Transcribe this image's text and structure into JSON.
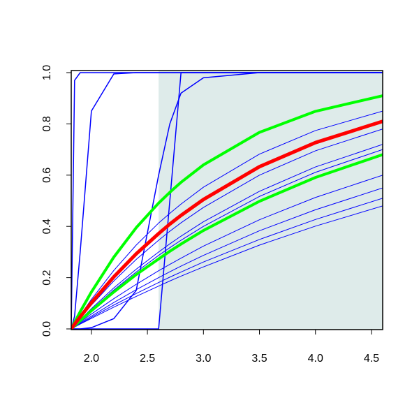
{
  "chart_data": {
    "type": "line",
    "xlim": [
      1.82,
      4.6
    ],
    "ylim": [
      0,
      1
    ],
    "xticks": [
      {
        "value": 2,
        "label": "2.0"
      },
      {
        "value": 2.5,
        "label": "2.5"
      },
      {
        "value": 3,
        "label": "3.0"
      },
      {
        "value": 3.5,
        "label": "3.5"
      },
      {
        "value": 4,
        "label": "4.0"
      },
      {
        "value": 4.5,
        "label": "4.5"
      }
    ],
    "yticks": [
      {
        "value": 0,
        "label": "0.0"
      },
      {
        "value": 0.2,
        "label": "0.2"
      },
      {
        "value": 0.4,
        "label": "0.4"
      },
      {
        "value": 0.6,
        "label": "0.6"
      },
      {
        "value": 0.8,
        "label": "0.8"
      },
      {
        "value": 1,
        "label": "1.0"
      }
    ],
    "shaded_xrange": [
      2.6,
      4.6
    ],
    "shade_color": "#deebea",
    "x": [
      1.82,
      1.85,
      1.9,
      2.0,
      2.2,
      2.4,
      2.6,
      2.7,
      2.8,
      3.0,
      3.5,
      4.0,
      4.6
    ],
    "series": [
      {
        "color": "#0000ff",
        "linewidth": 1.5,
        "values": [
          0,
          0.97,
          1,
          1,
          1,
          1,
          1,
          1,
          1,
          1,
          1,
          1,
          1
        ]
      },
      {
        "color": "#0000ff",
        "linewidth": 1.5,
        "values": [
          0,
          0.05,
          0.3,
          0.85,
          0.995,
          1,
          1,
          1,
          1,
          1,
          1,
          1,
          1
        ]
      },
      {
        "color": "#0000ff",
        "linewidth": 1.5,
        "values": [
          0,
          0,
          0,
          0.005,
          0.04,
          0.15,
          0.6,
          0.8,
          0.92,
          0.98,
          1,
          1,
          1
        ]
      },
      {
        "color": "#0000ff",
        "linewidth": 1.5,
        "values": [
          0,
          0,
          0,
          0,
          0,
          0,
          0,
          0.5,
          1,
          1,
          1,
          1,
          1
        ]
      },
      {
        "color": "#0000ff",
        "linewidth": 1,
        "values": [
          0,
          0.02,
          0.053,
          0.115,
          0.228,
          0.327,
          0.413,
          0.451,
          0.487,
          0.553,
          0.682,
          0.774,
          0.85
        ]
      },
      {
        "color": "#0000ff",
        "linewidth": 1,
        "values": [
          0,
          0.016,
          0.043,
          0.093,
          0.187,
          0.271,
          0.346,
          0.381,
          0.414,
          0.474,
          0.6,
          0.695,
          0.78
        ]
      },
      {
        "color": "#0000ff",
        "linewidth": 1,
        "values": [
          0,
          0.014,
          0.036,
          0.079,
          0.16,
          0.233,
          0.3,
          0.332,
          0.362,
          0.418,
          0.537,
          0.632,
          0.72
        ]
      },
      {
        "color": "#0000ff",
        "linewidth": 1,
        "values": [
          0,
          0.013,
          0.034,
          0.075,
          0.152,
          0.222,
          0.287,
          0.317,
          0.346,
          0.4,
          0.517,
          0.611,
          0.7
        ]
      },
      {
        "color": "#0000ff",
        "linewidth": 1,
        "values": [
          0,
          0.01,
          0.026,
          0.058,
          0.118,
          0.174,
          0.227,
          0.252,
          0.276,
          0.323,
          0.426,
          0.513,
          0.6
        ]
      },
      {
        "color": "#0000ff",
        "linewidth": 1,
        "values": [
          0,
          0.009,
          0.023,
          0.05,
          0.103,
          0.153,
          0.2,
          0.223,
          0.245,
          0.287,
          0.383,
          0.465,
          0.55
        ]
      },
      {
        "color": "#0000ff",
        "linewidth": 1,
        "values": [
          0,
          0.008,
          0.02,
          0.045,
          0.093,
          0.138,
          0.181,
          0.202,
          0.222,
          0.261,
          0.349,
          0.427,
          0.51
        ]
      },
      {
        "color": "#0000ff",
        "linewidth": 1,
        "values": [
          0,
          0.007,
          0.019,
          0.041,
          0.085,
          0.127,
          0.167,
          0.187,
          0.206,
          0.242,
          0.327,
          0.401,
          0.48
        ]
      },
      {
        "color": "#00ff00",
        "linewidth": 4,
        "values": [
          0,
          0.026,
          0.067,
          0.144,
          0.28,
          0.395,
          0.491,
          0.533,
          0.572,
          0.64,
          0.767,
          0.849,
          0.91
        ]
      },
      {
        "color": "#00ff00",
        "linewidth": 4,
        "values": [
          0,
          0.012,
          0.032,
          0.071,
          0.144,
          0.212,
          0.273,
          0.303,
          0.331,
          0.384,
          0.498,
          0.591,
          0.68
        ]
      },
      {
        "color": "#ff0000",
        "linewidth": 5,
        "values": [
          0,
          0.018,
          0.047,
          0.102,
          0.203,
          0.293,
          0.372,
          0.409,
          0.443,
          0.505,
          0.633,
          0.727,
          0.81
        ]
      }
    ]
  }
}
